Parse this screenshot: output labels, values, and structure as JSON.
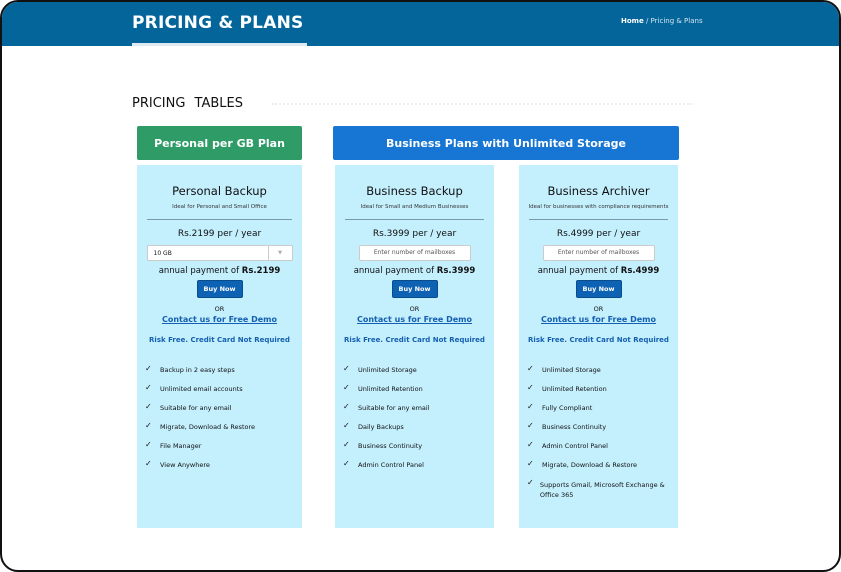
{
  "header": {
    "title": "PRICING & PLANS",
    "breadcrumb": {
      "home": "Home",
      "separator": "/",
      "current": "Pricing & Plans"
    }
  },
  "section_title": "PRICING TABLES",
  "groups": {
    "personal": "Personal per GB Plan",
    "business": "Business Plans with Unlimited Storage"
  },
  "colors": {
    "header": "#03659a",
    "personal_group": "#2f9c68",
    "business_group": "#1776d3",
    "card_bg": "#c4effd",
    "button": "#0d62b3"
  },
  "plans": [
    {
      "name": "Personal Backup",
      "subtitle": "Ideal for Personal and Small Office",
      "price": "Rs.2199",
      "period": " per / year",
      "select_value": "10 GB",
      "annual_label": "annual payment of ",
      "annual_value": "Rs.2199",
      "buy": "Buy Now",
      "or": "OR",
      "demo": "Contact us for Free Demo",
      "risk": "Risk Free. Credit Card Not Required",
      "features": [
        "Backup in 2 easy steps",
        "Unlimited email accounts",
        "Suitable for any email",
        "Migrate, Download & Restore",
        "File Manager",
        "View Anywhere"
      ]
    },
    {
      "name": "Business Backup",
      "subtitle": "Ideal for Small and Medium Businesses",
      "price": "Rs.3999",
      "period": " per / year",
      "placeholder": "Enter number of mailboxes",
      "annual_label": "annual payment of ",
      "annual_value": "Rs.3999",
      "buy": "Buy Now",
      "or": "OR",
      "demo": "Contact us for Free Demo",
      "risk": "Risk Free. Credit Card Not Required",
      "features": [
        "Unlimited Storage",
        "Unlimited Retention",
        "Suitable for any email",
        "Daily Backups",
        "Business Continuity",
        "Admin Control Panel"
      ]
    },
    {
      "name": "Business Archiver",
      "subtitle": "Ideal for businesses with compliance requirements",
      "price": "Rs.4999",
      "period": " per / year",
      "placeholder": "Enter number of mailboxes",
      "annual_label": "annual payment of ",
      "annual_value": "Rs.4999",
      "buy": "Buy Now",
      "or": "OR",
      "demo": "Contact us for Free Demo",
      "risk": "Risk Free. Credit Card Not Required",
      "features": [
        "Unlimited Storage",
        "Unlimited Retention",
        "Fully Compliant",
        "Business Continuity",
        "Admin Control Panel",
        "Migrate, Download & Restore",
        "Supports Gmail, Microsoft Exchange & Office 365"
      ]
    }
  ]
}
